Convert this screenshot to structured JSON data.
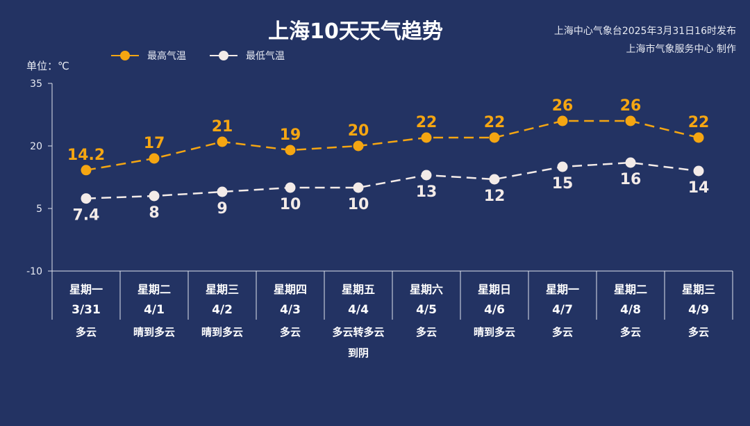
{
  "header": {
    "title": "上海10天天气趋势",
    "issuer_line1": "上海中心气象台2025年3月31日16时发布",
    "issuer_line2": "上海市气象服务中心 制作"
  },
  "legend": {
    "high": "最高气温",
    "low": "最低气温"
  },
  "unit_label": "单位：℃",
  "colors": {
    "background": "#233363",
    "high": "#f5a612",
    "low": "#f3ebe8",
    "axis": "#dfe3ee"
  },
  "chart_data": {
    "type": "line",
    "title": "上海10天天气趋势",
    "ylabel": "单位：℃",
    "ylim": [
      -10,
      35
    ],
    "yticks": [
      35,
      20,
      5,
      -10
    ],
    "categories": [
      "3/31",
      "4/1",
      "4/2",
      "4/3",
      "4/4",
      "4/5",
      "4/6",
      "4/7",
      "4/8",
      "4/9"
    ],
    "weekdays": [
      "星期一",
      "星期二",
      "星期三",
      "星期四",
      "星期五",
      "星期六",
      "星期日",
      "星期一",
      "星期二",
      "星期三"
    ],
    "weather": [
      [
        "多云"
      ],
      [
        "晴到多云"
      ],
      [
        "晴到多云"
      ],
      [
        "多云"
      ],
      [
        "多云转多云",
        "到阴"
      ],
      [
        "多云"
      ],
      [
        "晴到多云"
      ],
      [
        "多云"
      ],
      [
        "多云"
      ],
      [
        "多云"
      ]
    ],
    "series": [
      {
        "name": "最高气温",
        "values": [
          14.2,
          17,
          21,
          19,
          20,
          22,
          22,
          26,
          26,
          22
        ],
        "labels": [
          "14.2",
          "17",
          "21",
          "19",
          "20",
          "22",
          "22",
          "26",
          "26",
          "22"
        ]
      },
      {
        "name": "最低气温",
        "values": [
          7.4,
          8,
          9,
          10,
          10,
          13,
          12,
          15,
          16,
          14
        ],
        "labels": [
          "7.4",
          "8",
          "9",
          "10",
          "10",
          "13",
          "12",
          "15",
          "16",
          "14"
        ]
      }
    ],
    "grid": false,
    "legend_position": "top-left"
  }
}
